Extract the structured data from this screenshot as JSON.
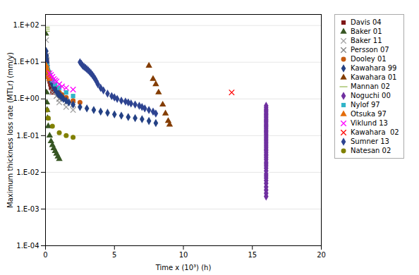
{
  "chart_data": {
    "type": "scatter",
    "xlabel": "Time x (10³) (h)",
    "ylabel": "Maximum thickness loss rate (MTLr) (mm/y)",
    "xlim": [
      0,
      20
    ],
    "xticks": [
      0,
      5,
      10,
      15,
      20
    ],
    "ylim": [
      0.0001,
      200
    ],
    "yticks": [
      {
        "value": 0.0001,
        "label": "1.E-04"
      },
      {
        "value": 0.001,
        "label": "1.E-03"
      },
      {
        "value": 0.01,
        "label": "1.E-02"
      },
      {
        "value": 0.1,
        "label": "1.E-01"
      },
      {
        "value": 1,
        "label": "1.E+00"
      },
      {
        "value": 10,
        "label": "1.E+01"
      },
      {
        "value": 100,
        "label": "1.E+02"
      }
    ],
    "log": "y",
    "grid": "y",
    "legend": "right",
    "series": [
      {
        "name": "Davis 04",
        "marker": "square",
        "color": "#7f1818",
        "x": [
          0.05,
          0.08,
          0.1,
          0.12,
          0.15,
          0.18,
          0.2,
          0.25,
          0.3,
          0.35,
          0.4,
          0.5
        ],
        "values": [
          15.0,
          12.0,
          10.0,
          8.0,
          6.0,
          5.0,
          4.0,
          3.5,
          3.0,
          2.5,
          2.0,
          1.5
        ]
      },
      {
        "name": "Baker 01",
        "marker": "triangle",
        "color": "#375623",
        "x": [
          0.02,
          0.04,
          0.06,
          0.08,
          0.1,
          0.12,
          0.15,
          0.2,
          0.3,
          0.4,
          0.5,
          0.6,
          0.7,
          0.8,
          0.9,
          1.0
        ],
        "values": [
          60.0,
          15.0,
          5.0,
          1.5,
          0.8,
          0.5,
          0.3,
          0.18,
          0.1,
          0.07,
          0.055,
          0.045,
          0.038,
          0.032,
          0.027,
          0.023
        ]
      },
      {
        "name": "Baker 11",
        "marker": "x",
        "color": "#a5a5a5",
        "x": [
          0.05,
          0.1,
          0.2,
          0.5,
          1.0,
          1.5,
          2.0
        ],
        "values": [
          40.0,
          15.0,
          5.0,
          1.5,
          0.8,
          0.6,
          0.5
        ]
      },
      {
        "name": "Persson 07",
        "marker": "x",
        "color": "#808080",
        "x": [
          0.1,
          0.2,
          0.3,
          0.5,
          0.8,
          1.0,
          1.5,
          2.0
        ],
        "values": [
          8.0,
          5.0,
          3.5,
          2.0,
          1.2,
          1.0,
          0.8,
          0.7
        ]
      },
      {
        "name": "Dooley 01",
        "marker": "circle",
        "color": "#c55a11",
        "x": [
          0.05,
          0.1,
          0.15,
          0.2,
          0.3,
          0.4,
          0.5,
          0.6,
          0.7,
          0.8,
          0.9,
          1.0,
          1.2,
          1.5,
          2.0,
          2.5
        ],
        "values": [
          10.0,
          8.0,
          6.5,
          5.5,
          4.0,
          3.0,
          2.5,
          2.2,
          2.0,
          1.8,
          1.6,
          1.5,
          1.3,
          1.1,
          0.9,
          0.8
        ]
      },
      {
        "name": "Kawahara 99",
        "marker": "diamond",
        "color": "#244185",
        "x": [
          0.05,
          0.08,
          0.1,
          0.12,
          0.15,
          0.2,
          0.25,
          0.3,
          0.35,
          0.4,
          0.45,
          0.5,
          0.55,
          0.6,
          0.65,
          0.7,
          0.75,
          0.8,
          0.85,
          0.9,
          0.95,
          1.0,
          1.1,
          1.2,
          1.3,
          1.5,
          1.7,
          2.0,
          2.5,
          3.0,
          3.5,
          4.0,
          4.5,
          5.0,
          5.5,
          6.0,
          6.5,
          7.0,
          7.5,
          8.0
        ],
        "values": [
          20.0,
          15.0,
          12.0,
          10.0,
          8.0,
          6.0,
          5.0,
          4.0,
          3.5,
          3.0,
          2.8,
          2.5,
          2.3,
          2.1,
          2.0,
          1.8,
          1.7,
          1.6,
          1.5,
          1.4,
          1.35,
          1.3,
          1.2,
          1.1,
          1.0,
          0.9,
          0.8,
          0.7,
          0.6,
          0.55,
          0.5,
          0.45,
          0.42,
          0.38,
          0.35,
          0.32,
          0.3,
          0.28,
          0.25,
          0.22
        ]
      },
      {
        "name": "Kawahara 01",
        "marker": "triangle",
        "color": "#833c00",
        "x": [
          7.5,
          7.8,
          8.0,
          8.2,
          8.5,
          8.7,
          8.9,
          9.0
        ],
        "values": [
          8.0,
          3.5,
          2.5,
          1.5,
          0.7,
          0.4,
          0.25,
          0.2
        ]
      },
      {
        "name": "Mannan 02",
        "marker": "hline",
        "color": "#9bbb59",
        "x": [
          0.02,
          0.025,
          0.03
        ],
        "values": [
          90.0,
          80.0,
          70.0
        ]
      },
      {
        "name": "Noguchi 00",
        "marker": "diamond",
        "color": "#7030a0",
        "x": [
          16.0,
          16.0,
          16.0,
          16.0,
          16.0,
          16.0,
          16.0,
          16.0,
          16.0,
          16.0,
          16.0,
          16.0,
          16.0,
          16.0,
          16.0,
          16.0,
          16.0,
          16.0,
          16.0,
          16.0,
          16.0,
          16.0,
          16.0,
          16.0,
          16.0,
          16.0,
          16.0,
          16.0,
          16.0,
          16.0,
          16.0,
          16.0,
          16.0,
          16.0,
          16.0,
          16.0,
          16.0,
          16.0,
          16.0,
          16.0,
          16.0,
          16.0,
          16.0,
          16.0,
          16.0,
          16.0,
          16.0,
          16.0,
          16.0,
          16.0
        ],
        "values": [
          0.65,
          0.58,
          0.52,
          0.48,
          0.44,
          0.4,
          0.37,
          0.34,
          0.31,
          0.28,
          0.26,
          0.24,
          0.22,
          0.2,
          0.185,
          0.17,
          0.155,
          0.14,
          0.13,
          0.118,
          0.107,
          0.097,
          0.088,
          0.08,
          0.072,
          0.065,
          0.059,
          0.053,
          0.048,
          0.043,
          0.039,
          0.035,
          0.031,
          0.028,
          0.025,
          0.022,
          0.019,
          0.017,
          0.015,
          0.013,
          0.011,
          0.009,
          0.008,
          0.007,
          0.006,
          0.005,
          0.004,
          0.0033,
          0.0027,
          0.0022
        ]
      },
      {
        "name": "Nylof 97",
        "marker": "square",
        "color": "#31b4c8",
        "x": [
          0.1,
          0.15,
          0.2,
          0.3,
          0.4,
          0.5,
          0.7,
          1.0,
          1.5,
          2.0
        ],
        "values": [
          8.0,
          6.5,
          5.5,
          4.5,
          3.8,
          3.2,
          2.5,
          2.0,
          1.5,
          1.2
        ]
      },
      {
        "name": "Otsuka 97",
        "marker": "triangle",
        "color": "#e36c09",
        "x": [
          0.05,
          0.1,
          0.15,
          0.2,
          0.25,
          0.3
        ],
        "values": [
          8.0,
          6.5,
          5.5,
          4.5,
          4.0,
          3.5
        ]
      },
      {
        "name": "Viklund 13",
        "marker": "x",
        "color": "#ff00ff",
        "x": [
          0.3,
          0.4,
          0.5,
          0.6,
          0.7,
          0.8,
          1.0,
          1.2,
          1.5,
          2.0
        ],
        "values": [
          5.0,
          4.5,
          4.0,
          3.5,
          3.2,
          3.0,
          2.5,
          2.2,
          2.0,
          1.8
        ]
      },
      {
        "name": "Kawahara  02",
        "marker": "x",
        "color": "#ff0000",
        "x": [
          13.5
        ],
        "values": [
          1.5
        ]
      },
      {
        "name": "Sumner 13",
        "marker": "diamond",
        "color": "#2e4491",
        "x": [
          2.5,
          2.6,
          2.7,
          2.8,
          2.9,
          3.0,
          3.1,
          3.2,
          3.3,
          3.4,
          3.5,
          3.6,
          3.7,
          3.8,
          4.0,
          4.2,
          4.5,
          4.8,
          5.0,
          5.2,
          5.5,
          5.8,
          6.0,
          6.2,
          6.5,
          6.8,
          7.0,
          7.2,
          7.5,
          7.8,
          8.0
        ],
        "values": [
          10.0,
          9.0,
          8.0,
          7.5,
          7.0,
          6.5,
          6.0,
          5.5,
          5.0,
          4.5,
          4.0,
          3.5,
          3.0,
          2.5,
          2.0,
          1.7,
          1.4,
          1.2,
          1.1,
          1.0,
          0.9,
          0.85,
          0.8,
          0.75,
          0.7,
          0.65,
          0.6,
          0.55,
          0.5,
          0.45,
          0.4
        ]
      },
      {
        "name": "Natesan 02",
        "marker": "circle",
        "color": "#808000",
        "x": [
          0.1,
          0.2,
          0.5,
          1.0,
          1.5,
          2.0
        ],
        "values": [
          0.5,
          0.3,
          0.18,
          0.12,
          0.1,
          0.09
        ]
      }
    ]
  }
}
